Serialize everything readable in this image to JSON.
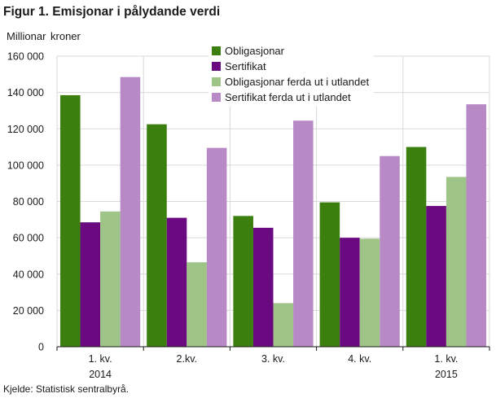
{
  "title": "Figur 1. Emisjonar i pålydande verdi",
  "source": "Kjelde: Statistisk sentralbyrå.",
  "chart_data": {
    "type": "bar",
    "ylabel": "Millionar  kroner",
    "ylim": [
      0,
      160000
    ],
    "yticks": [
      0,
      20000,
      40000,
      60000,
      80000,
      100000,
      120000,
      140000,
      160000
    ],
    "ytick_labels": [
      "0",
      "20 000",
      "40 000",
      "60 000",
      "80 000",
      "100 000",
      "120 000",
      "140 000",
      "160 000"
    ],
    "categories": [
      "1. kv.",
      "2.kv.",
      "3. kv.",
      "4. kv.",
      "1. kv."
    ],
    "category_years": [
      "2014",
      "",
      "",
      "",
      "2015"
    ],
    "grid": true,
    "legend_position": "top-center",
    "series": [
      {
        "name": "Obligasjonar",
        "color": "#3b7f0f",
        "values": [
          138500,
          122500,
          72000,
          79500,
          110000
        ]
      },
      {
        "name": "Sertifikat",
        "color": "#6b0a80",
        "values": [
          68500,
          71000,
          65500,
          60000,
          77500
        ]
      },
      {
        "name": "Obligasjonar ferda ut i utlandet",
        "color": "#9fc487",
        "values": [
          74500,
          46500,
          24000,
          59500,
          93500
        ]
      },
      {
        "name": "Sertifikat ferda ut i utlandet",
        "color": "#b78ac6",
        "values": [
          148500,
          109500,
          124500,
          105000,
          133500
        ]
      }
    ]
  }
}
